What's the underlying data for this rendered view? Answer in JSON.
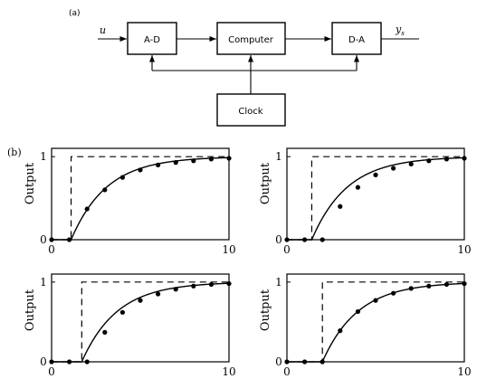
{
  "diagram": {
    "panel_label": "(a)",
    "input_label": "u",
    "output_label_main": "y",
    "output_label_sub": "s",
    "blocks": {
      "ad": "A-D",
      "computer": "Computer",
      "da": "D-A",
      "clock": "Clock"
    }
  },
  "plots": {
    "panel_label": "(b)",
    "ylabel": "Output",
    "xlim": [
      0,
      10
    ],
    "ylim": [
      0,
      1.1
    ],
    "x_ticks": [
      "0",
      "10"
    ],
    "y_ticks": [
      "0",
      "1"
    ]
  },
  "chart_data": [
    {
      "type": "line",
      "position": "top-left",
      "ylabel": "Output",
      "xlim": [
        0,
        10
      ],
      "ylim": [
        0,
        1.1
      ],
      "series": [
        {
          "kind": "dashed-step",
          "x": [
            0,
            1.1,
            1.1,
            10
          ],
          "y": [
            0,
            0,
            1,
            1
          ]
        },
        {
          "kind": "curve",
          "delay": 1.1,
          "tau": 2.0
        },
        {
          "kind": "samples",
          "x": [
            0,
            1,
            2,
            3,
            4,
            5,
            6,
            7,
            8,
            9,
            10
          ],
          "y": [
            0,
            0,
            0.37,
            0.6,
            0.75,
            0.84,
            0.9,
            0.93,
            0.95,
            0.97,
            0.98
          ]
        }
      ]
    },
    {
      "type": "line",
      "position": "top-right",
      "ylabel": "Output",
      "xlim": [
        0,
        10
      ],
      "ylim": [
        0,
        1.1
      ],
      "series": [
        {
          "kind": "dashed-step",
          "x": [
            0,
            1.4,
            1.4,
            10
          ],
          "y": [
            0,
            0,
            1,
            1
          ]
        },
        {
          "kind": "curve",
          "delay": 1.4,
          "tau": 2.0
        },
        {
          "kind": "samples",
          "x": [
            0,
            1,
            2,
            3,
            4,
            5,
            6,
            7,
            8,
            9,
            10
          ],
          "y": [
            0,
            0,
            0,
            0.4,
            0.63,
            0.78,
            0.86,
            0.91,
            0.95,
            0.97,
            0.98
          ]
        }
      ]
    },
    {
      "type": "line",
      "position": "bottom-left",
      "ylabel": "Output",
      "xlim": [
        0,
        10
      ],
      "ylim": [
        0,
        1.1
      ],
      "series": [
        {
          "kind": "dashed-step",
          "x": [
            0,
            1.7,
            1.7,
            10
          ],
          "y": [
            0,
            0,
            1,
            1
          ]
        },
        {
          "kind": "curve",
          "delay": 1.7,
          "tau": 2.0
        },
        {
          "kind": "samples",
          "x": [
            0,
            1,
            2,
            3,
            4,
            5,
            6,
            7,
            8,
            9,
            10
          ],
          "y": [
            0,
            0,
            0,
            0.37,
            0.62,
            0.77,
            0.85,
            0.91,
            0.95,
            0.97,
            0.98
          ]
        }
      ]
    },
    {
      "type": "line",
      "position": "bottom-right",
      "ylabel": "Output",
      "xlim": [
        0,
        10
      ],
      "ylim": [
        0,
        1.1
      ],
      "series": [
        {
          "kind": "dashed-step",
          "x": [
            0,
            2.0,
            2.0,
            10
          ],
          "y": [
            0,
            0,
            1,
            1
          ]
        },
        {
          "kind": "curve",
          "delay": 2.0,
          "tau": 2.0
        },
        {
          "kind": "samples",
          "x": [
            0,
            1,
            2,
            3,
            4,
            5,
            6,
            7,
            8,
            9,
            10
          ],
          "y": [
            0,
            0,
            0,
            0.39,
            0.63,
            0.77,
            0.86,
            0.92,
            0.95,
            0.97,
            0.98
          ]
        }
      ]
    }
  ]
}
